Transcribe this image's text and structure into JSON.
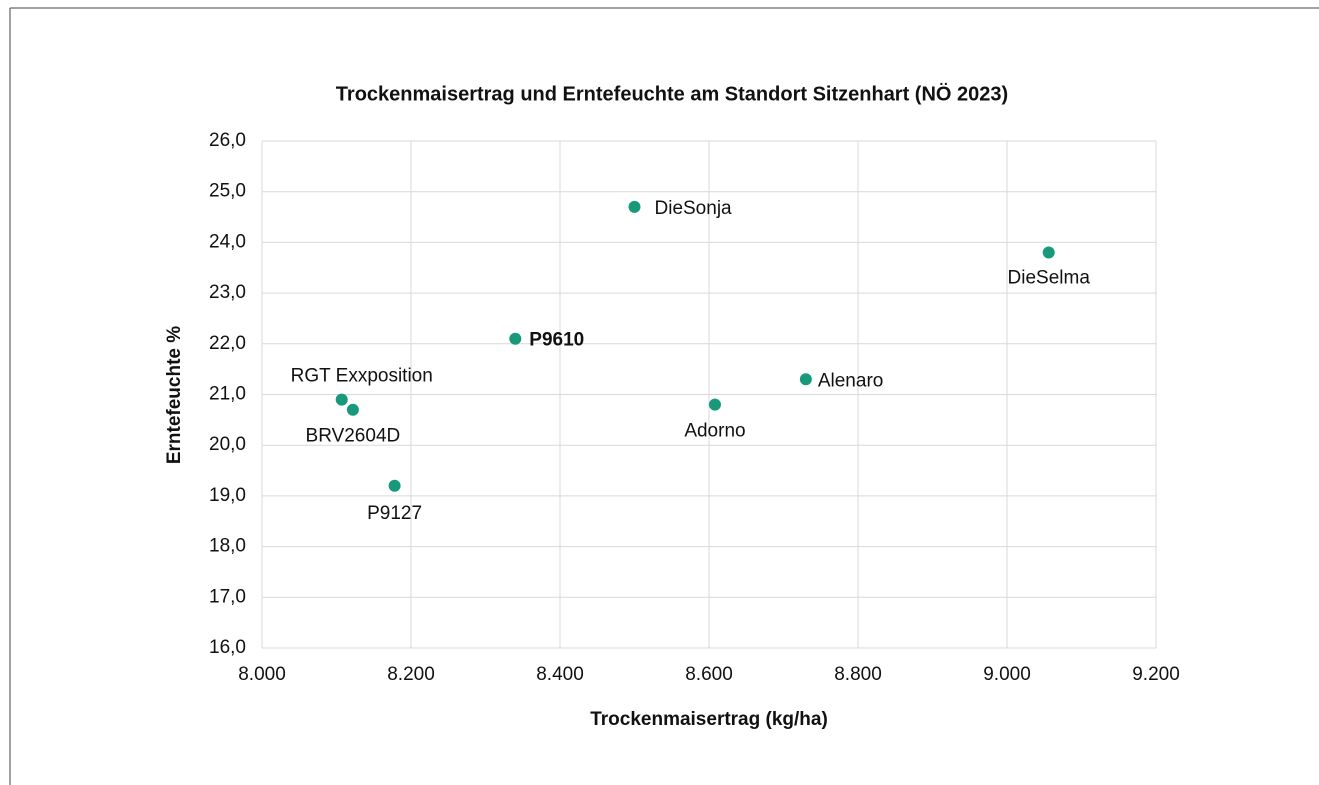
{
  "chart_data": {
    "type": "scatter",
    "title": "Trockenmaisertrag und Erntefeuchte am Standort Sitzenhart (NÖ 2023)",
    "xlabel": "Trockenmaisertrag (kg/ha)",
    "ylabel": "Erntefeuchte %",
    "series": [
      {
        "color": "#17997a",
        "labels": [
          "DieSonja",
          "DieSelma",
          "P9610",
          "Alenaro",
          "Adorno",
          "RGT Exxposition",
          "BRV2604D",
          "P9127"
        ],
        "x": [
          8500,
          9056,
          8340,
          8730,
          8608,
          8107,
          8122,
          8178
        ],
        "values": [
          24.7,
          23.8,
          22.1,
          21.3,
          20.8,
          20.9,
          20.7,
          19.2
        ]
      }
    ],
    "xlim": [
      8000,
      9200
    ],
    "xticks": [
      {
        "value": 8000,
        "label": "8.000"
      },
      {
        "value": 8200,
        "label": "8.200"
      },
      {
        "value": 8400,
        "label": "8.400"
      },
      {
        "value": 8600,
        "label": "8.600"
      },
      {
        "value": 8800,
        "label": "8.800"
      },
      {
        "value": 9000,
        "label": "9.000"
      },
      {
        "value": 9200,
        "label": "9.200"
      }
    ],
    "ylim": [
      16,
      26
    ],
    "yticks": [
      {
        "value": 16,
        "label": "16,0"
      },
      {
        "value": 17,
        "label": "17,0"
      },
      {
        "value": 18,
        "label": "18,0"
      },
      {
        "value": 19,
        "label": "19,0"
      },
      {
        "value": 20,
        "label": "20,0"
      },
      {
        "value": 21,
        "label": "21,0"
      },
      {
        "value": 22,
        "label": "22,0"
      },
      {
        "value": 23,
        "label": "23,0"
      },
      {
        "value": 24,
        "label": "24,0"
      },
      {
        "value": 25,
        "label": "25,0"
      },
      {
        "value": 26,
        "label": "26,0"
      }
    ],
    "grid": true
  }
}
